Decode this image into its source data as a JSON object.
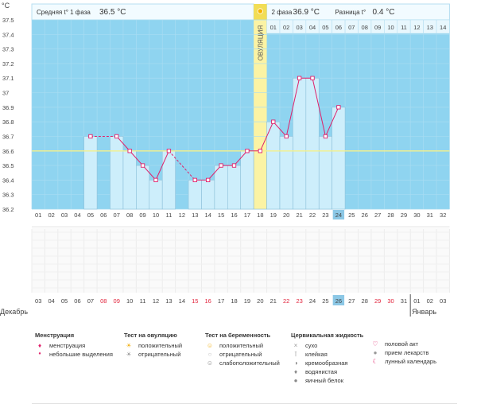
{
  "chart_data": {
    "type": "bar",
    "y_unit": "°C",
    "ylim": [
      36.2,
      37.5
    ],
    "yticks": [
      "36.2",
      "36.3",
      "36.4",
      "36.5",
      "36.6",
      "36.7",
      "36.8",
      "36.9",
      "37",
      "37.1",
      "37.2",
      "37.3",
      "37.4",
      "37.5"
    ],
    "cycle_days": [
      "01",
      "02",
      "03",
      "04",
      "05",
      "06",
      "07",
      "08",
      "09",
      "10",
      "11",
      "12",
      "13",
      "14",
      "15",
      "16",
      "17",
      "18",
      "19",
      "20",
      "21",
      "22",
      "23",
      "24",
      "25",
      "26",
      "27",
      "28",
      "29",
      "30",
      "31",
      "32"
    ],
    "calendar_days": [
      "03",
      "04",
      "05",
      "06",
      "07",
      "08",
      "09",
      "10",
      "11",
      "12",
      "13",
      "14",
      "15",
      "16",
      "17",
      "18",
      "19",
      "20",
      "21",
      "22",
      "23",
      "24",
      "25",
      "26",
      "27",
      "28",
      "29",
      "30",
      "31",
      "01",
      "02",
      "03"
    ],
    "calendar_red_days": [
      "08",
      "09",
      "15",
      "16",
      "22",
      "23",
      "29",
      "30"
    ],
    "month_start": "Декабрь",
    "month_next": "Январь",
    "temperatures": [
      null,
      null,
      null,
      null,
      36.7,
      null,
      36.7,
      36.6,
      36.5,
      36.4,
      36.6,
      null,
      36.4,
      36.4,
      36.5,
      36.5,
      36.6,
      36.6,
      36.8,
      36.7,
      37.1,
      37.1,
      36.7,
      36.9,
      null,
      null,
      null,
      null,
      null,
      null,
      null,
      null
    ],
    "dashed_segments": [
      [
        5,
        7
      ],
      [
        11,
        13
      ]
    ],
    "coverline": 36.6,
    "ovulation_day": "18",
    "ovulation_label": "ОВУЛЯЦИЯ",
    "current_day": "24",
    "current_calendar_day": "26",
    "phase2_days": [
      "01",
      "02",
      "03",
      "04",
      "05",
      "06",
      "07",
      "08",
      "09",
      "10",
      "11",
      "12",
      "13",
      "14"
    ],
    "header": {
      "phase1_label": "Средняя t° 1 фаза",
      "phase1_value": "36.5 °C",
      "phase2_label": "2 фаза",
      "phase2_value": "36.9 °C",
      "diff_label": "Разница t°",
      "diff_value": "0.4 °C"
    },
    "colors": {
      "plot_bg": "#8fd4f0",
      "bar_fill": "#cdeefb",
      "bar_stroke": "#8bbfd9",
      "line": "#e0206a",
      "coverline": "#f4f08a",
      "ovulation": "#fbf3a4",
      "ovulation_top": "#f2dd55",
      "header_bg": "#f2fbff",
      "current_day": "#8cc8e6",
      "red_day": "#e2243c"
    }
  },
  "legend": {
    "menstruation": {
      "title": "Менструация",
      "items": [
        "менструация",
        "небольшие выделения"
      ]
    },
    "ovulation_test": {
      "title": "Тест на овуляцию",
      "items": [
        "положительный",
        "отрицательный"
      ]
    },
    "pregnancy_test": {
      "title": "Тест на беременность",
      "items": [
        "положительный",
        "отрицательный",
        "слабоположительный"
      ]
    },
    "cervical_fluid": {
      "title": "Цервикальная жидкость",
      "items": [
        "сухо",
        "клейкая",
        "кремообразная",
        "водянистая",
        "яичный белок"
      ]
    },
    "other": {
      "items": [
        "половой акт",
        "прием лекарств",
        "лунный календарь"
      ]
    }
  }
}
